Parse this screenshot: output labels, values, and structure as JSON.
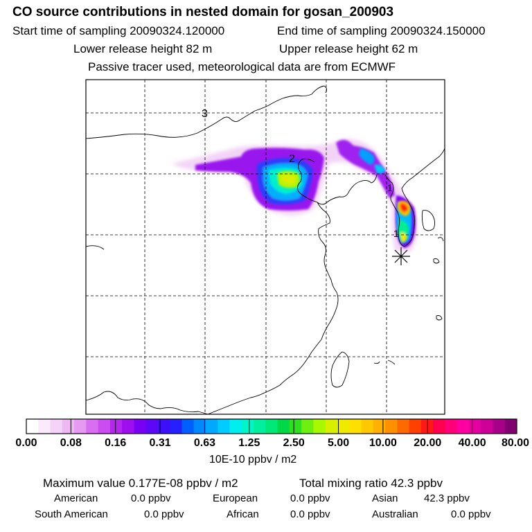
{
  "header": {
    "title": "CO  source contributions in nested domain for gosan_200903",
    "start_label": "Start time of sampling 20090324.120000",
    "end_label": "End time of sampling 20090324.150000",
    "lower_release": "Lower release height   82 m",
    "upper_release": "Upper release height   62 m",
    "note": "Passive tracer used, meteorological data are from ECMWF"
  },
  "map": {
    "markers": [
      "3",
      "2",
      "1",
      "1"
    ]
  },
  "colorbar": {
    "labels": [
      "0.00",
      "0.08",
      "0.16",
      "0.31",
      "0.63",
      "1.25",
      "2.50",
      "5.00",
      "10.00",
      "20.00",
      "40.00",
      "80.00"
    ],
    "units": "10E-10 ppbv / m2",
    "colors": [
      "#ffffff",
      "#fbeafb",
      "#f5d2f7",
      "#eeb8f3",
      "#e69af1",
      "#d86ff0",
      "#cb4cf0",
      "#b526ef",
      "#9f0eef",
      "#7a00f4",
      "#5c08f6",
      "#3d10fa",
      "#2620ff",
      "#0060ff",
      "#0088ff",
      "#00a8ff",
      "#00ccff",
      "#00eeee",
      "#00f5c8",
      "#00f0a0",
      "#00e878",
      "#00d848",
      "#30e020",
      "#70ee10",
      "#a8f800",
      "#d8f000",
      "#f0ea00",
      "#ffdf00",
      "#ffc800",
      "#ffb000",
      "#ff9000",
      "#ff6a00",
      "#ff4000",
      "#ff1818",
      "#ff0050",
      "#ff007a",
      "#ff00a0",
      "#e400a0",
      "#cc0098",
      "#a80088",
      "#800070"
    ]
  },
  "summary": {
    "max_label": "Maximum value  0.177E-08 ppbv / m2",
    "total_label": "Total mixing ratio       42.3 ppbv",
    "american_label": "American",
    "american_value": "0.0 ppbv",
    "european_label": "European",
    "european_value": "0.0 ppbv",
    "asian_label": "Asian",
    "asian_value": "42.3 ppbv",
    "south_american_label": "South American",
    "south_american_value": "0.0 ppbv",
    "african_label": "African",
    "african_value": "0.0 ppbv",
    "australian_label": "Australian",
    "australian_value": "0.0 ppbv"
  }
}
